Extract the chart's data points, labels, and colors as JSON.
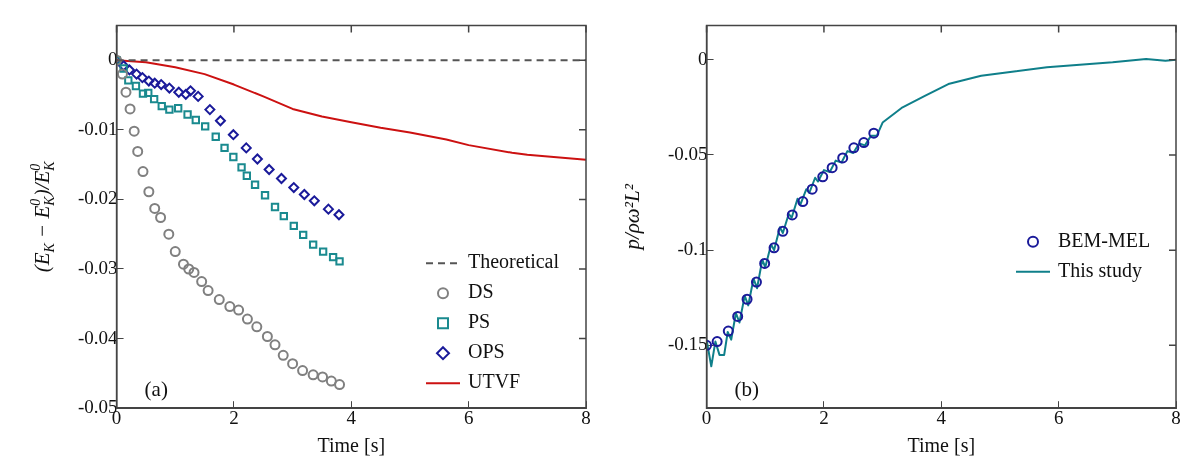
{
  "chart_data": [
    {
      "type": "scatter",
      "xlabel": "Time [s]",
      "ylabel": "(E$_{K}$ − E$_{K}$$^{0}$)/E$_{K}$$^{0}$",
      "annotations": [
        "(a)"
      ],
      "xlim": [
        0,
        8
      ],
      "xticks": [
        0,
        2,
        4,
        6,
        8
      ],
      "ylim": [
        -0.05,
        0.005
      ],
      "yticks": [
        0,
        -0.01,
        -0.02,
        -0.03,
        -0.04,
        -0.05
      ],
      "grid": false,
      "legend": "bottom right",
      "series": [
        {
          "name": "Theoretical",
          "type": "line",
          "line_style": "dashed",
          "marker": "none",
          "color": "#555555",
          "x": [
            0,
            8
          ],
          "values": [
            0,
            0
          ]
        },
        {
          "name": "DS",
          "type": "scatter",
          "marker": "circle",
          "color": "#808080",
          "x": [
            0,
            0.1,
            0.16,
            0.23,
            0.3,
            0.36,
            0.45,
            0.55,
            0.65,
            0.75,
            0.89,
            1.0,
            1.14,
            1.23,
            1.32,
            1.45,
            1.56,
            1.75,
            1.93,
            2.08,
            2.23,
            2.39,
            2.57,
            2.7,
            2.84,
            3.0,
            3.17,
            3.35,
            3.51,
            3.66,
            3.8
          ],
          "values": [
            0,
            -0.002,
            -0.0046,
            -0.007,
            -0.0102,
            -0.0131,
            -0.016,
            -0.0189,
            -0.0213,
            -0.0226,
            -0.025,
            -0.0275,
            -0.0293,
            -0.03,
            -0.0305,
            -0.0318,
            -0.0331,
            -0.0344,
            -0.0354,
            -0.0359,
            -0.0372,
            -0.0383,
            -0.0397,
            -0.0409,
            -0.0424,
            -0.0436,
            -0.0446,
            -0.0452,
            -0.0455,
            -0.0461,
            -0.0466
          ]
        },
        {
          "name": "PS",
          "type": "scatter",
          "marker": "square",
          "color": "#1a8a8f",
          "x": [
            0,
            0.12,
            0.2,
            0.33,
            0.45,
            0.54,
            0.64,
            0.77,
            0.9,
            1.05,
            1.21,
            1.35,
            1.51,
            1.69,
            1.84,
            1.99,
            2.13,
            2.22,
            2.36,
            2.53,
            2.7,
            2.85,
            3.02,
            3.18,
            3.35,
            3.52,
            3.69,
            3.8
          ],
          "values": [
            0,
            -0.0012,
            -0.0029,
            -0.0037,
            -0.0048,
            -0.0047,
            -0.0056,
            -0.0066,
            -0.0071,
            -0.0069,
            -0.0078,
            -0.0086,
            -0.0095,
            -0.011,
            -0.0126,
            -0.0139,
            -0.0154,
            -0.0166,
            -0.0179,
            -0.0194,
            -0.0211,
            -0.0224,
            -0.0238,
            -0.0251,
            -0.0265,
            -0.0275,
            -0.0283,
            -0.0289
          ]
        },
        {
          "name": "OPS",
          "type": "scatter",
          "marker": "diamond",
          "color": "#1a1a9a",
          "x": [
            0,
            0.12,
            0.22,
            0.34,
            0.44,
            0.55,
            0.65,
            0.76,
            0.9,
            1.06,
            1.18,
            1.26,
            1.39,
            1.59,
            1.77,
            1.99,
            2.21,
            2.4,
            2.6,
            2.81,
            3.02,
            3.2,
            3.37,
            3.61,
            3.79
          ],
          "values": [
            0,
            -0.0008,
            -0.0014,
            -0.002,
            -0.0025,
            -0.003,
            -0.0033,
            -0.0035,
            -0.004,
            -0.0046,
            -0.0049,
            -0.0044,
            -0.0052,
            -0.0071,
            -0.0087,
            -0.0107,
            -0.0126,
            -0.0142,
            -0.0157,
            -0.017,
            -0.0183,
            -0.0193,
            -0.0202,
            -0.0214,
            -0.0222
          ]
        },
        {
          "name": "UTVF",
          "type": "line",
          "line_style": "solid",
          "marker": "none",
          "color": "#cc1111",
          "x": [
            0,
            0.5,
            1,
            1.5,
            2,
            2.5,
            3,
            3.5,
            4,
            4.5,
            5,
            5.62,
            6,
            6.74,
            7,
            8
          ],
          "values": [
            0,
            -0.0003,
            -0.001,
            -0.002,
            -0.0035,
            -0.0052,
            -0.007,
            -0.0081,
            -0.0089,
            -0.0097,
            -0.0104,
            -0.0114,
            -0.0122,
            -0.0133,
            -0.0136,
            -0.0143
          ]
        }
      ]
    },
    {
      "type": "scatter",
      "xlabel": "Time [s]",
      "ylabel": "p/ρω²L²",
      "annotations": [
        "(b)"
      ],
      "xlim": [
        0,
        8
      ],
      "xticks": [
        0,
        2,
        4,
        6,
        8
      ],
      "ylim": [
        -0.183,
        0.018
      ],
      "yticks": [
        0,
        -0.05,
        -0.1,
        -0.15
      ],
      "grid": false,
      "legend": "right",
      "series": [
        {
          "name": "BEM-MEL",
          "type": "scatter",
          "marker": "circle",
          "color": "#1a1a9a",
          "x": [
            0,
            0.18,
            0.37,
            0.53,
            0.69,
            0.85,
            0.99,
            1.15,
            1.3,
            1.46,
            1.64,
            1.8,
            1.98,
            2.14,
            2.32,
            2.51,
            2.68,
            2.85
          ],
          "values": [
            -0.15,
            -0.148,
            -0.1425,
            -0.1348,
            -0.1258,
            -0.1168,
            -0.107,
            -0.0988,
            -0.0901,
            -0.0815,
            -0.0745,
            -0.068,
            -0.0615,
            -0.0567,
            -0.0516,
            -0.0463,
            -0.0435,
            -0.0386
          ]
        },
        {
          "name": "This study",
          "type": "line",
          "line_style": "solid",
          "marker": "none",
          "color": "#0f7f8a",
          "x": [
            0,
            0.08,
            0.15,
            0.22,
            0.3,
            0.36,
            0.42,
            0.5,
            0.56,
            0.65,
            0.71,
            0.8,
            0.86,
            0.95,
            1.0,
            1.1,
            1.15,
            1.25,
            1.3,
            1.4,
            1.45,
            1.55,
            1.6,
            1.7,
            1.75,
            1.85,
            1.9,
            2.0,
            2.1,
            2.2,
            2.3,
            2.4,
            2.5,
            2.6,
            2.7,
            2.8,
            2.9,
            3.0,
            3.34,
            3.72,
            4.12,
            4.68,
            5.24,
            5.8,
            6.36,
            6.92,
            7.49,
            7.82,
            8
          ],
          "values": [
            -0.147,
            -0.161,
            -0.148,
            -0.155,
            -0.155,
            -0.143,
            -0.147,
            -0.133,
            -0.138,
            -0.124,
            -0.129,
            -0.115,
            -0.12,
            -0.105,
            -0.109,
            -0.097,
            -0.1,
            -0.088,
            -0.091,
            -0.081,
            -0.083,
            -0.073,
            -0.076,
            -0.068,
            -0.07,
            -0.062,
            -0.064,
            -0.058,
            -0.059,
            -0.053,
            -0.054,
            -0.048,
            -0.049,
            -0.044,
            -0.045,
            -0.04,
            -0.04,
            -0.033,
            -0.025,
            -0.019,
            -0.0128,
            -0.0084,
            -0.0062,
            -0.004,
            -0.0026,
            -0.0014,
            0.0004,
            -0.0005,
            0
          ]
        }
      ]
    }
  ]
}
